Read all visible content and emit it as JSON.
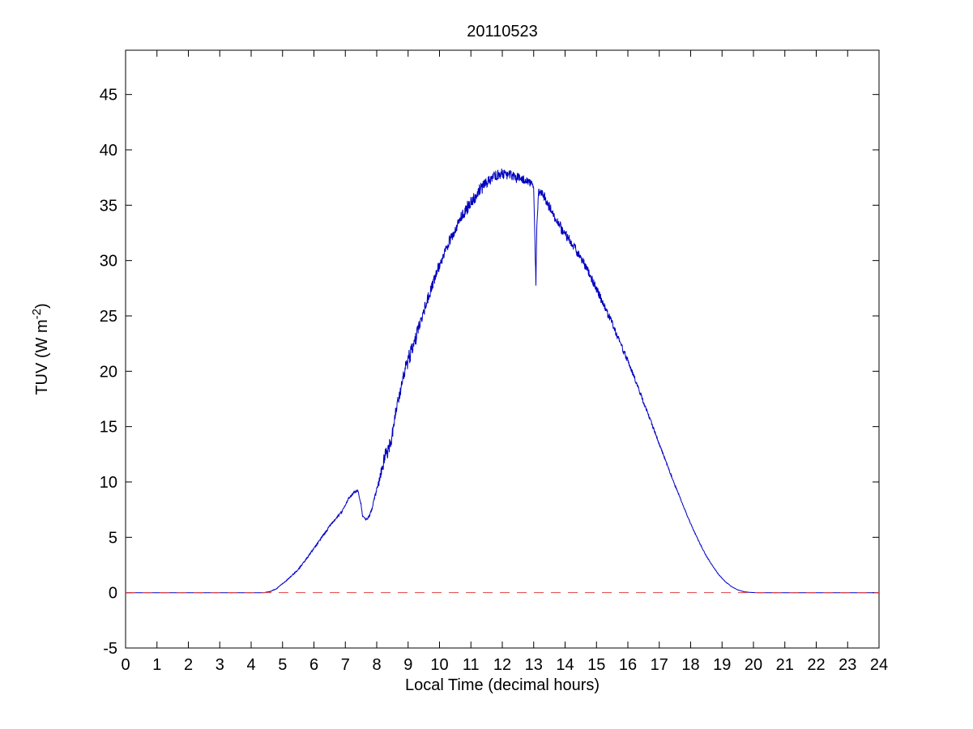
{
  "figure": {
    "background": "#ffffff",
    "axis_color": "#000000"
  },
  "chart_data": {
    "type": "line",
    "title": "20110523",
    "xlabel": "Local Time (decimal hours)",
    "ylabel": "TUV (W m^-2)",
    "ylabel_parts": {
      "prefix": "TUV (W m",
      "superscript": "-2",
      "suffix": ")"
    },
    "xlim": [
      0,
      24
    ],
    "ylim": [
      -5,
      49
    ],
    "xticks": [
      0,
      1,
      2,
      3,
      4,
      5,
      6,
      7,
      8,
      9,
      10,
      11,
      12,
      13,
      14,
      15,
      16,
      17,
      18,
      19,
      20,
      21,
      22,
      23,
      24
    ],
    "yticks": [
      -5,
      0,
      5,
      10,
      15,
      20,
      25,
      30,
      35,
      40,
      45
    ],
    "grid": false,
    "legend": null,
    "noise_seed": 523,
    "sample_step_hours": 0.01,
    "series": [
      {
        "name": "TUV irradiance",
        "color": "#0000c0",
        "style": "solid",
        "points_xyn": [
          [
            0,
            0,
            0
          ],
          [
            4.4,
            0,
            0
          ],
          [
            4.6,
            0.1,
            0.02
          ],
          [
            4.8,
            0.35,
            0.03
          ],
          [
            5,
            0.8,
            0.05
          ],
          [
            5.25,
            1.4,
            0.05
          ],
          [
            5.5,
            2.1,
            0.06
          ],
          [
            5.75,
            3,
            0.08
          ],
          [
            6,
            4,
            0.08
          ],
          [
            6.25,
            5,
            0.1
          ],
          [
            6.5,
            6,
            0.1
          ],
          [
            6.7,
            6.7,
            0.12
          ],
          [
            6.9,
            7.3,
            0.12
          ],
          [
            7.1,
            8.5,
            0.1
          ],
          [
            7.3,
            9.1,
            0.08
          ],
          [
            7.4,
            9.2,
            0.08
          ],
          [
            7.5,
            8,
            0.1
          ],
          [
            7.55,
            6.9,
            0.08
          ],
          [
            7.65,
            6.6,
            0.08
          ],
          [
            7.75,
            6.8,
            0.1
          ],
          [
            7.85,
            7.6,
            0.15
          ],
          [
            7.95,
            8.8,
            0.2
          ],
          [
            8.05,
            9.7,
            0.3
          ],
          [
            8.15,
            11,
            0.5
          ],
          [
            8.25,
            12.2,
            0.7
          ],
          [
            8.35,
            12.8,
            0.7
          ],
          [
            8.45,
            13.6,
            0.6
          ],
          [
            8.55,
            15.3,
            0.6
          ],
          [
            8.65,
            17,
            0.5
          ],
          [
            8.75,
            18.2,
            0.5
          ],
          [
            8.85,
            19.4,
            0.6
          ],
          [
            8.95,
            20.6,
            0.7
          ],
          [
            9.1,
            21.8,
            0.7
          ],
          [
            9.25,
            23,
            0.6
          ],
          [
            9.4,
            24.6,
            0.5
          ],
          [
            9.6,
            26.3,
            0.5
          ],
          [
            9.8,
            28,
            0.5
          ],
          [
            10,
            29.6,
            0.5
          ],
          [
            10.2,
            31,
            0.5
          ],
          [
            10.4,
            32.3,
            0.5
          ],
          [
            10.6,
            33.4,
            0.5
          ],
          [
            10.8,
            34.4,
            0.6
          ],
          [
            11,
            35.3,
            0.6
          ],
          [
            11.2,
            36,
            0.6
          ],
          [
            11.4,
            36.8,
            0.6
          ],
          [
            11.6,
            37.3,
            0.5
          ],
          [
            11.8,
            37.7,
            0.5
          ],
          [
            12,
            37.9,
            0.5
          ],
          [
            12.2,
            37.8,
            0.5
          ],
          [
            12.4,
            37.5,
            0.5
          ],
          [
            12.6,
            37.4,
            0.4
          ],
          [
            12.8,
            37.2,
            0.4
          ],
          [
            12.95,
            36.9,
            0.3
          ],
          [
            13,
            36.6,
            0.2
          ],
          [
            13.04,
            31.5,
            0.4
          ],
          [
            13.07,
            27.8,
            0.3
          ],
          [
            13.1,
            33,
            0.4
          ],
          [
            13.15,
            36.2,
            0.3
          ],
          [
            13.3,
            36,
            0.4
          ],
          [
            13.5,
            34.8,
            0.5
          ],
          [
            13.7,
            33.6,
            0.5
          ],
          [
            13.9,
            32.8,
            0.5
          ],
          [
            14.1,
            32,
            0.5
          ],
          [
            14.3,
            31.2,
            0.4
          ],
          [
            14.5,
            30.3,
            0.4
          ],
          [
            14.7,
            29.2,
            0.4
          ],
          [
            14.9,
            28,
            0.4
          ],
          [
            15.1,
            26.8,
            0.4
          ],
          [
            15.3,
            25.5,
            0.4
          ],
          [
            15.5,
            24.3,
            0.35
          ],
          [
            15.7,
            23,
            0.3
          ],
          [
            15.9,
            21.6,
            0.3
          ],
          [
            16.1,
            20.2,
            0.25
          ],
          [
            16.3,
            18.7,
            0.2
          ],
          [
            16.5,
            17.2,
            0.2
          ],
          [
            16.7,
            15.7,
            0.15
          ],
          [
            16.9,
            14.2,
            0.12
          ],
          [
            17.1,
            12.7,
            0.1
          ],
          [
            17.3,
            11.2,
            0.1
          ],
          [
            17.5,
            9.7,
            0.08
          ],
          [
            17.7,
            8.3,
            0.08
          ],
          [
            17.9,
            6.9,
            0.06
          ],
          [
            18.1,
            5.6,
            0.05
          ],
          [
            18.3,
            4.4,
            0.05
          ],
          [
            18.5,
            3.3,
            0.04
          ],
          [
            18.7,
            2.4,
            0.03
          ],
          [
            18.9,
            1.6,
            0.03
          ],
          [
            19.1,
            1,
            0.02
          ],
          [
            19.3,
            0.55,
            0.02
          ],
          [
            19.5,
            0.25,
            0.01
          ],
          [
            19.7,
            0.08,
            0.01
          ],
          [
            19.9,
            0.02,
            0
          ],
          [
            20.1,
            0,
            0
          ],
          [
            24,
            0,
            0
          ]
        ]
      },
      {
        "name": "zero reference line",
        "color": "#e04040",
        "style": "dashed",
        "y": 0
      }
    ]
  }
}
